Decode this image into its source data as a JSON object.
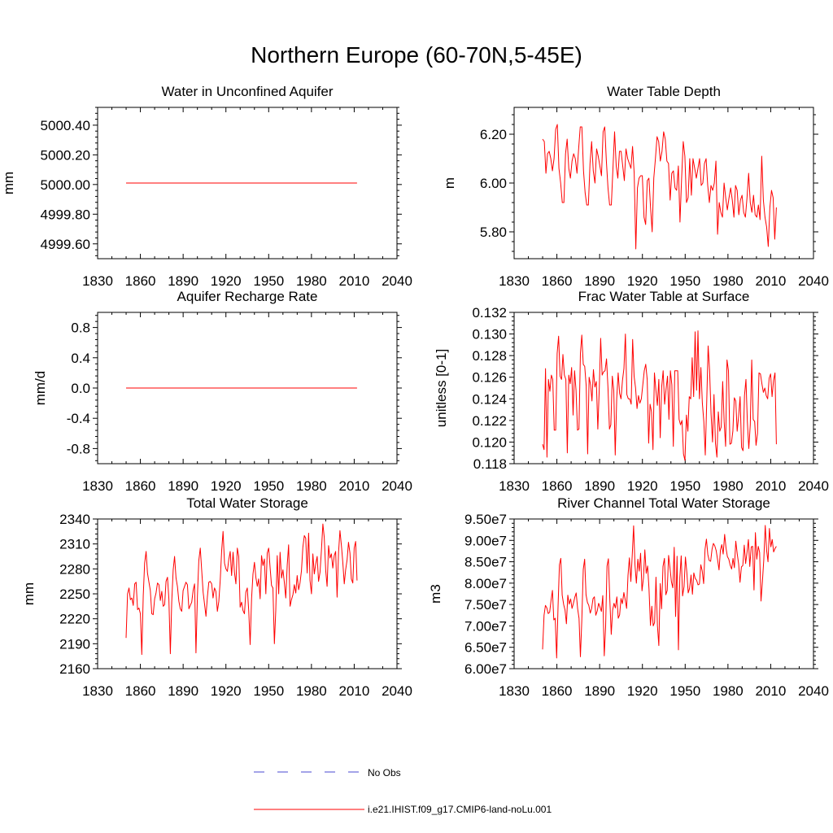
{
  "title": "Northern Europe (60-70N,5-45E)",
  "legend": {
    "obs_label": "No Obs",
    "obs_color": "#4a4ad0",
    "model_label": "i.e21.IHIST.f09_g17.CMIP6-land-noLu.001",
    "model_color": "#ff0000"
  },
  "chart_data": [
    {
      "type": "line",
      "title": "Water in Unconfined Aquifer",
      "ylabel": "mm",
      "xlim": [
        1830,
        2040
      ],
      "ylim": [
        4999.5,
        5000.52
      ],
      "xticks": [
        1830,
        1860,
        1890,
        1920,
        1950,
        1980,
        2010,
        2040
      ],
      "yticks": [
        4999.6,
        4999.8,
        5000.0,
        5000.2,
        5000.4
      ],
      "ytick_labels": [
        "4999.60",
        "4999.80",
        "5000.00",
        "5000.20",
        "5000.40"
      ],
      "series": [
        {
          "x_start": 1850,
          "x_end": 2012,
          "values": [
            5000.01,
            5000.01
          ]
        }
      ]
    },
    {
      "type": "line",
      "title": "Water Table Depth",
      "ylabel": "m",
      "xlim": [
        1830,
        2040
      ],
      "ylim": [
        5.69,
        6.31
      ],
      "xticks": [
        1830,
        1860,
        1890,
        1920,
        1950,
        1980,
        2010,
        2040
      ],
      "yticks": [
        5.8,
        6.0,
        6.2
      ],
      "ytick_labels": [
        "5.80",
        "6.00",
        "6.20"
      ],
      "series": [
        {
          "x_start": 1850,
          "x_end": 2014,
          "values": [
            6.18,
            6.17,
            6.04,
            6.12,
            6.13,
            6.1,
            6.05,
            6.1,
            6.22,
            6.24,
            6.06,
            6.0,
            5.92,
            5.92,
            6.12,
            6.18,
            6.06,
            6.02,
            6.09,
            6.12,
            6.1,
            6.04,
            6.14,
            6.23,
            6.23,
            6.05,
            5.96,
            5.91,
            5.91,
            6.08,
            6.17,
            6.05,
            6.0,
            6.14,
            6.11,
            6.07,
            6.03,
            6.21,
            6.23,
            6.09,
            5.98,
            5.91,
            5.91,
            6.06,
            6.21,
            6.07,
            6.02,
            6.13,
            6.13,
            6.07,
            6.01,
            6.14,
            6.1,
            6.08,
            6.06,
            6.15,
            6.04,
            5.73,
            5.98,
            6.02,
            6.03,
            6.03,
            5.86,
            5.83,
            6.01,
            6.02,
            5.9,
            5.8,
            6.02,
            6.1,
            6.19,
            6.17,
            6.09,
            6.13,
            6.21,
            6.18,
            6.09,
            6.08,
            5.93,
            6.04,
            6.05,
            5.98,
            5.97,
            6.07,
            5.84,
            6.02,
            6.17,
            6.11,
            5.92,
            5.94,
            6.1,
            5.95,
            6.1,
            6.06,
            6.02,
            6.06,
            6.1,
            5.99,
            6.0,
            6.08,
            6.1,
            5.99,
            5.92,
            5.99,
            5.97,
            6.0,
            6.09,
            5.79,
            5.92,
            5.88,
            5.86,
            6.0,
            5.94,
            5.89,
            5.94,
            5.98,
            5.93,
            5.86,
            5.99,
            5.97,
            5.87,
            5.93,
            5.95,
            5.88,
            5.86,
            5.94,
            6.04,
            5.92,
            5.88,
            5.95,
            5.87,
            5.86,
            5.91,
            5.85,
            6.11,
            5.93,
            5.86,
            5.82,
            5.74,
            5.9,
            5.97,
            5.94,
            5.77,
            5.9
          ]
        }
      ]
    },
    {
      "type": "line",
      "title": "Aquifer Recharge Rate",
      "ylabel": "mm/d",
      "xlim": [
        1830,
        2040
      ],
      "ylim": [
        -1.0,
        1.0
      ],
      "xticks": [
        1830,
        1860,
        1890,
        1920,
        1950,
        1980,
        2010,
        2040
      ],
      "yticks": [
        -0.8,
        -0.4,
        0.0,
        0.4,
        0.8
      ],
      "ytick_labels": [
        "-0.8",
        "-0.4",
        "0.0",
        "0.4",
        "0.8"
      ],
      "series": [
        {
          "x_start": 1850,
          "x_end": 2012,
          "values": [
            0.0,
            0.0
          ]
        }
      ]
    },
    {
      "type": "line",
      "title": "Frac Water Table at Surface",
      "ylabel": "unitless [0-1]",
      "xlim": [
        1830,
        2040
      ],
      "ylim": [
        0.118,
        0.132
      ],
      "xticks": [
        1830,
        1860,
        1890,
        1920,
        1950,
        1980,
        2010,
        2040
      ],
      "yticks": [
        0.118,
        0.12,
        0.122,
        0.124,
        0.126,
        0.128,
        0.13,
        0.132
      ],
      "ytick_labels": [
        "0.118",
        "0.120",
        "0.122",
        "0.124",
        "0.126",
        "0.128",
        "0.130",
        "0.132"
      ],
      "series": [
        {
          "x_start": 1850,
          "x_end": 2014,
          "values": [
            0.1198,
            0.1193,
            0.1268,
            0.1186,
            0.1258,
            0.1247,
            0.1262,
            0.1258,
            0.1211,
            0.1211,
            0.1282,
            0.1298,
            0.1261,
            0.1258,
            0.1281,
            0.1262,
            0.1258,
            0.119,
            0.1262,
            0.1254,
            0.1269,
            0.1225,
            0.1266,
            0.1248,
            0.1211,
            0.1212,
            0.1282,
            0.1299,
            0.1272,
            0.127,
            0.1252,
            0.1189,
            0.126,
            0.1253,
            0.1238,
            0.1267,
            0.1251,
            0.1256,
            0.1212,
            0.125,
            0.1296,
            0.1262,
            0.1265,
            0.1266,
            0.1277,
            0.125,
            0.1212,
            0.1216,
            0.1261,
            0.1248,
            0.1188,
            0.124,
            0.1264,
            0.1245,
            0.124,
            0.1257,
            0.1268,
            0.13,
            0.1244,
            0.124,
            0.124,
            0.1235,
            0.1295,
            0.1261,
            0.125,
            0.1231,
            0.1243,
            0.1236,
            0.124,
            0.1253,
            0.1266,
            0.1272,
            0.1258,
            0.1199,
            0.1235,
            0.1228,
            0.1193,
            0.1264,
            0.1248,
            0.1234,
            0.1258,
            0.1204,
            0.1251,
            0.1266,
            0.1235,
            0.1249,
            0.1261,
            0.1221,
            0.1266,
            0.1253,
            0.1196,
            0.1266,
            0.1266,
            0.1266,
            0.1221,
            0.1216,
            0.122,
            0.1189,
            0.1183,
            0.1225,
            0.121,
            0.1242,
            0.124,
            0.1278,
            0.1242,
            0.1302,
            0.1248,
            0.1303,
            0.124,
            0.1269,
            0.1236,
            0.1219,
            0.1188,
            0.1238,
            0.1289,
            0.1266,
            0.1226,
            0.12,
            0.1244,
            0.1199,
            0.1186,
            0.1228,
            0.121,
            0.1214,
            0.1256,
            0.1219,
            0.1196,
            0.1276,
            0.1266,
            0.1198,
            0.1199,
            0.121,
            0.1241,
            0.1238,
            0.121,
            0.1224,
            0.1242,
            0.1195,
            0.1192,
            0.1243,
            0.1258,
            0.1219,
            0.1194,
            0.1216,
            0.1276,
            0.1221,
            0.1219,
            0.1197,
            0.1208,
            0.1264,
            0.1263,
            0.1254,
            0.1246,
            0.125,
            0.1243,
            0.124,
            0.1259,
            0.1263,
            0.1242,
            0.1257,
            0.1264,
            0.1198
          ]
        }
      ]
    },
    {
      "type": "line",
      "title": "Total Water Storage",
      "ylabel": "mm",
      "xlim": [
        1830,
        2040
      ],
      "ylim": [
        2160,
        2340
      ],
      "xticks": [
        1830,
        1860,
        1890,
        1920,
        1950,
        1980,
        2010,
        2040
      ],
      "yticks": [
        2160,
        2190,
        2220,
        2250,
        2280,
        2310,
        2340
      ],
      "ytick_labels": [
        "2160",
        "2190",
        "2220",
        "2250",
        "2280",
        "2310",
        "2340"
      ],
      "series": [
        {
          "x_start": 1850,
          "x_end": 2012,
          "values": [
            2197,
            2250,
            2257,
            2243,
            2245,
            2236,
            2262,
            2264,
            2231,
            2233,
            2226,
            2177,
            2248,
            2287,
            2301,
            2275,
            2264,
            2254,
            2226,
            2225,
            2244,
            2251,
            2263,
            2261,
            2242,
            2253,
            2235,
            2237,
            2265,
            2270,
            2244,
            2178,
            2240,
            2279,
            2295,
            2269,
            2259,
            2241,
            2232,
            2229,
            2254,
            2259,
            2264,
            2261,
            2232,
            2236,
            2240,
            2254,
            2262,
            2179,
            2248,
            2290,
            2305,
            2279,
            2252,
            2238,
            2223,
            2246,
            2264,
            2265,
            2262,
            2245,
            2257,
            2253,
            2229,
            2241,
            2266,
            2302,
            2325,
            2287,
            2280,
            2277,
            2291,
            2301,
            2272,
            2300,
            2276,
            2262,
            2305,
            2295,
            2234,
            2240,
            2230,
            2226,
            2252,
            2257,
            2229,
            2189,
            2245,
            2274,
            2288,
            2270,
            2259,
            2268,
            2244,
            2296,
            2284,
            2292,
            2250,
            2299,
            2305,
            2282,
            2260,
            2257,
            2190,
            2230,
            2296,
            2250,
            2300,
            2269,
            2279,
            2263,
            2245,
            2285,
            2309,
            2235,
            2243,
            2249,
            2261,
            2251,
            2272,
            2255,
            2263,
            2278,
            2306,
            2320,
            2317,
            2275,
            2323,
            2266,
            2250,
            2298,
            2274,
            2286,
            2295,
            2265,
            2276,
            2302,
            2334,
            2318,
            2278,
            2259,
            2308,
            2293,
            2298,
            2281,
            2296,
            2301,
            2246,
            2300,
            2326,
            2308,
            2288,
            2262,
            2279,
            2291,
            2312,
            2299,
            2268,
            2263,
            2305,
            2313,
            2266
          ]
        }
      ]
    },
    {
      "type": "line",
      "title": "River Channel Total Water Storage",
      "ylabel": "m3",
      "xlim": [
        1830,
        2040
      ],
      "ylim": [
        60000000,
        95000000
      ],
      "xticks": [
        1830,
        1860,
        1890,
        1920,
        1950,
        1980,
        2010,
        2040
      ],
      "yticks": [
        60000000,
        65000000,
        70000000,
        75000000,
        80000000,
        85000000,
        90000000,
        95000000
      ],
      "ytick_labels": [
        "6.00e7",
        "6.50e7",
        "7.00e7",
        "7.50e7",
        "8.00e7",
        "8.50e7",
        "9.00e7",
        "9.50e7"
      ],
      "series": [
        {
          "x_start": 1850,
          "x_end": 2014,
          "values": [
            64500000,
            72500000,
            74800000,
            74200000,
            72900000,
            73200000,
            76000000,
            78300000,
            71400000,
            71800000,
            62500000,
            74500000,
            84300000,
            85800000,
            77200000,
            75000000,
            73700000,
            70500000,
            77200000,
            75100000,
            76300000,
            74100000,
            75300000,
            76700000,
            77700000,
            74000000,
            71800000,
            62800000,
            71300000,
            83200000,
            85600000,
            77300000,
            75500000,
            74800000,
            73000000,
            74100000,
            76400000,
            76800000,
            72500000,
            73500000,
            75300000,
            74400000,
            73400000,
            77100000,
            63000000,
            69900000,
            84000000,
            85700000,
            75900000,
            68000000,
            73700000,
            75300000,
            74200000,
            76800000,
            71800000,
            72600000,
            76400000,
            75200000,
            77800000,
            76100000,
            74100000,
            81800000,
            85900000,
            80400000,
            86500000,
            93400000,
            84200000,
            80000000,
            85600000,
            82800000,
            87000000,
            78200000,
            81200000,
            87800000,
            82300000,
            84000000,
            78700000,
            70100000,
            74600000,
            70000000,
            70800000,
            81400000,
            70000000,
            65400000,
            79900000,
            74000000,
            83900000,
            85800000,
            77300000,
            78300000,
            86500000,
            83600000,
            80300000,
            78900000,
            88400000,
            72200000,
            86300000,
            64400000,
            81300000,
            86400000,
            77000000,
            79200000,
            86100000,
            82600000,
            77700000,
            78800000,
            81900000,
            77400000,
            82400000,
            81100000,
            80700000,
            79600000,
            79800000,
            84300000,
            82900000,
            79900000,
            87900000,
            90300000,
            86700000,
            85300000,
            85100000,
            87900000,
            89300000,
            88700000,
            87600000,
            85400000,
            83100000,
            87700000,
            89000000,
            86800000,
            91400000,
            88200000,
            86200000,
            85600000,
            84200000,
            83300000,
            85800000,
            83600000,
            89800000,
            86800000,
            84500000,
            80200000,
            83800000,
            84100000,
            88900000,
            84600000,
            87200000,
            90200000,
            83900000,
            88500000,
            88600000,
            78400000,
            91800000,
            85600000,
            88600000,
            87200000,
            75800000,
            80300000,
            85400000,
            93500000,
            87700000,
            85000000,
            92800000,
            88500000,
            90200000,
            87300000,
            88100000,
            88600000
          ]
        }
      ]
    }
  ]
}
